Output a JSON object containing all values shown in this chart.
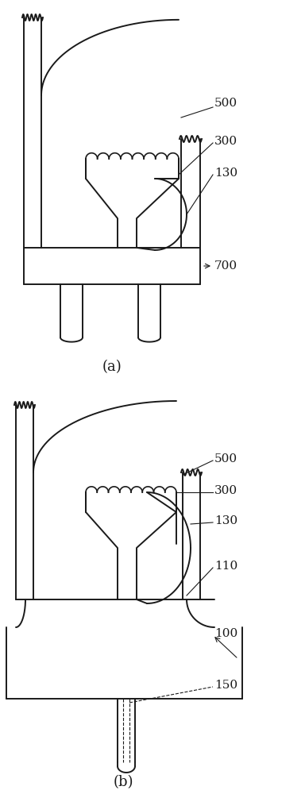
{
  "fig_width": 3.84,
  "fig_height": 10.0,
  "dpi": 100,
  "bg_color": "#ffffff",
  "lc": "#1a1a1a",
  "lw": 1.4,
  "lw_thin": 0.9,
  "fs_label": 11,
  "fs_caption": 13
}
